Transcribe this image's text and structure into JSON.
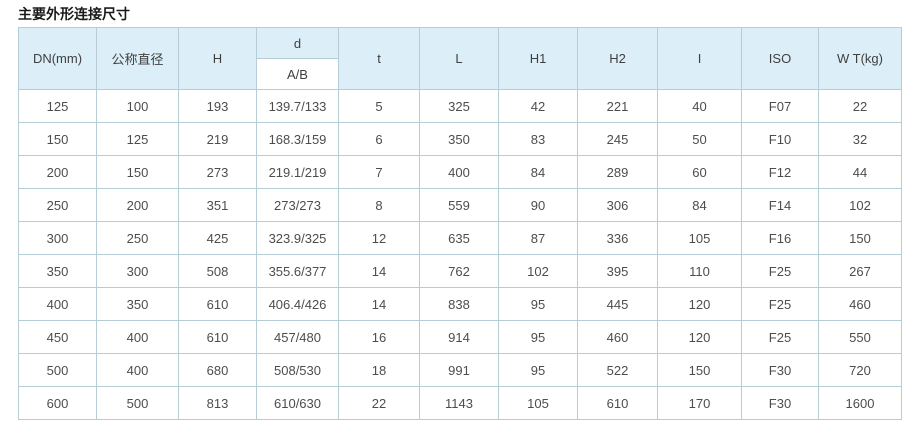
{
  "page": {
    "title": "主要外形连接尺寸"
  },
  "colors": {
    "header_bg": "#dceef7",
    "subheader_bg": "#ffffff",
    "border": "#b6ccd7",
    "text": "#4d4d4d",
    "title_text": "#1a1a1a"
  },
  "table": {
    "columns": [
      {
        "key": "dn",
        "label": "DN(mm)"
      },
      {
        "key": "nominal",
        "label": "公称直径"
      },
      {
        "key": "h",
        "label": "H"
      },
      {
        "key": "d",
        "label": "d",
        "sublabel": "A/B"
      },
      {
        "key": "t",
        "label": "t"
      },
      {
        "key": "l",
        "label": "L"
      },
      {
        "key": "h1",
        "label": "H1"
      },
      {
        "key": "h2",
        "label": "H2"
      },
      {
        "key": "i",
        "label": "I"
      },
      {
        "key": "iso",
        "label": "ISO"
      },
      {
        "key": "wt",
        "label": "W T(kg)"
      }
    ],
    "rows": [
      [
        "125",
        "100",
        "193",
        "139.7/133",
        "5",
        "325",
        "42",
        "221",
        "40",
        "F07",
        "22"
      ],
      [
        "150",
        "125",
        "219",
        "168.3/159",
        "6",
        "350",
        "83",
        "245",
        "50",
        "F10",
        "32"
      ],
      [
        "200",
        "150",
        "273",
        "219.1/219",
        "7",
        "400",
        "84",
        "289",
        "60",
        "F12",
        "44"
      ],
      [
        "250",
        "200",
        "351",
        "273/273",
        "8",
        "559",
        "90",
        "306",
        "84",
        "F14",
        "102"
      ],
      [
        "300",
        "250",
        "425",
        "323.9/325",
        "12",
        "635",
        "87",
        "336",
        "105",
        "F16",
        "150"
      ],
      [
        "350",
        "300",
        "508",
        "355.6/377",
        "14",
        "762",
        "102",
        "395",
        "110",
        "F25",
        "267"
      ],
      [
        "400",
        "350",
        "610",
        "406.4/426",
        "14",
        "838",
        "95",
        "445",
        "120",
        "F25",
        "460"
      ],
      [
        "450",
        "400",
        "610",
        "457/480",
        "16",
        "914",
        "95",
        "460",
        "120",
        "F25",
        "550"
      ],
      [
        "500",
        "400",
        "680",
        "508/530",
        "18",
        "991",
        "95",
        "522",
        "150",
        "F30",
        "720"
      ],
      [
        "600",
        "500",
        "813",
        "610/630",
        "22",
        "1143",
        "105",
        "610",
        "170",
        "F30",
        "1600"
      ]
    ]
  }
}
